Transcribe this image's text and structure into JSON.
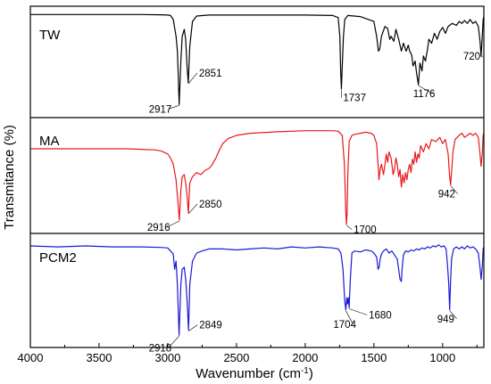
{
  "chart_data": {
    "type": "line",
    "title": "",
    "xlabel": "Wavenumber (cm",
    "xlabel_sup": "-1",
    "xlabel_close": ")",
    "ylabel": "Transmitance (%)",
    "xlim": [
      4000,
      700
    ],
    "x_reversed": true,
    "x_ticks": [
      4000,
      3500,
      3000,
      2500,
      2000,
      1500,
      1000
    ],
    "x_tick_labels": [
      "4000",
      "3500",
      "3000",
      "2500",
      "2000",
      "1500",
      "1000"
    ],
    "grid": false,
    "legend": "none",
    "ylim": [
      0,
      1
    ],
    "series": [
      {
        "name": "TW",
        "color": "#000000",
        "x": [
          4000,
          3800,
          3600,
          3400,
          3200,
          3050,
          3000,
          2980,
          2960,
          2940,
          2930,
          2925,
          2917,
          2905,
          2895,
          2880,
          2870,
          2860,
          2851,
          2840,
          2820,
          2790,
          2700,
          2400,
          2200,
          2000,
          1800,
          1760,
          1748,
          1742,
          1737,
          1730,
          1722,
          1712,
          1690,
          1600,
          1500,
          1480,
          1467,
          1458,
          1445,
          1420,
          1400,
          1385,
          1375,
          1355,
          1340,
          1320,
          1300,
          1285,
          1265,
          1250,
          1240,
          1225,
          1215,
          1200,
          1190,
          1176,
          1165,
          1150,
          1140,
          1125,
          1110,
          1100,
          1080,
          1060,
          1040,
          1020,
          1000,
          980,
          960,
          950,
          930,
          900,
          880,
          860,
          840,
          820,
          800,
          780,
          760,
          740,
          728,
          720,
          712,
          705,
          700
        ],
        "y": [
          0.97,
          0.97,
          0.97,
          0.97,
          0.97,
          0.968,
          0.965,
          0.96,
          0.92,
          0.75,
          0.6,
          0.4,
          0.06,
          0.5,
          0.75,
          0.82,
          0.72,
          0.45,
          0.28,
          0.65,
          0.9,
          0.955,
          0.965,
          0.965,
          0.965,
          0.965,
          0.96,
          0.94,
          0.75,
          0.4,
          0.22,
          0.45,
          0.75,
          0.92,
          0.96,
          0.95,
          0.9,
          0.75,
          0.6,
          0.62,
          0.75,
          0.85,
          0.83,
          0.72,
          0.75,
          0.7,
          0.82,
          0.72,
          0.6,
          0.68,
          0.6,
          0.66,
          0.6,
          0.56,
          0.45,
          0.5,
          0.38,
          0.26,
          0.48,
          0.4,
          0.55,
          0.5,
          0.62,
          0.72,
          0.68,
          0.78,
          0.72,
          0.8,
          0.84,
          0.78,
          0.85,
          0.86,
          0.88,
          0.86,
          0.9,
          0.88,
          0.91,
          0.88,
          0.92,
          0.88,
          0.9,
          0.85,
          0.7,
          0.55,
          0.75,
          0.92,
          0.95
        ]
      },
      {
        "name": "MA",
        "color": "#e8191b",
        "x": [
          4000,
          3700,
          3500,
          3300,
          3200,
          3100,
          3050,
          3000,
          2980,
          2960,
          2940,
          2930,
          2916,
          2905,
          2895,
          2880,
          2870,
          2860,
          2850,
          2840,
          2820,
          2790,
          2760,
          2730,
          2700,
          2680,
          2650,
          2620,
          2600,
          2560,
          2500,
          2400,
          2200,
          2000,
          1800,
          1760,
          1730,
          1715,
          1705,
          1700,
          1695,
          1690,
          1680,
          1660,
          1640,
          1600,
          1560,
          1520,
          1500,
          1480,
          1470,
          1463,
          1455,
          1445,
          1430,
          1420,
          1410,
          1400,
          1390,
          1375,
          1360,
          1350,
          1340,
          1330,
          1320,
          1310,
          1300,
          1290,
          1280,
          1270,
          1260,
          1250,
          1240,
          1230,
          1220,
          1210,
          1200,
          1190,
          1180,
          1170,
          1160,
          1140,
          1120,
          1100,
          1080,
          1050,
          1020,
          1000,
          980,
          960,
          950,
          942,
          935,
          925,
          910,
          880,
          860,
          840,
          820,
          800,
          780,
          760,
          740,
          728,
          720,
          712,
          705,
          700
        ],
        "y": [
          0.75,
          0.75,
          0.75,
          0.75,
          0.745,
          0.74,
          0.73,
          0.7,
          0.66,
          0.6,
          0.45,
          0.3,
          0.06,
          0.35,
          0.48,
          0.5,
          0.42,
          0.3,
          0.13,
          0.42,
          0.48,
          0.52,
          0.5,
          0.54,
          0.56,
          0.59,
          0.66,
          0.75,
          0.8,
          0.85,
          0.88,
          0.9,
          0.915,
          0.925,
          0.925,
          0.92,
          0.88,
          0.6,
          0.15,
          0.02,
          0.12,
          0.5,
          0.82,
          0.88,
          0.89,
          0.9,
          0.91,
          0.9,
          0.88,
          0.8,
          0.6,
          0.45,
          0.55,
          0.6,
          0.5,
          0.6,
          0.7,
          0.62,
          0.72,
          0.66,
          0.5,
          0.55,
          0.66,
          0.6,
          0.48,
          0.55,
          0.38,
          0.5,
          0.42,
          0.52,
          0.45,
          0.55,
          0.6,
          0.52,
          0.65,
          0.6,
          0.72,
          0.62,
          0.7,
          0.66,
          0.78,
          0.72,
          0.8,
          0.75,
          0.84,
          0.82,
          0.86,
          0.8,
          0.84,
          0.7,
          0.5,
          0.4,
          0.52,
          0.72,
          0.84,
          0.88,
          0.9,
          0.86,
          0.88,
          0.9,
          0.88,
          0.9,
          0.86,
          0.7,
          0.58,
          0.7,
          0.88,
          0.9
        ]
      },
      {
        "name": "PCM2",
        "color": "#1a1ad4",
        "x": [
          4000,
          3800,
          3600,
          3400,
          3200,
          3050,
          3000,
          2980,
          2960,
          2950,
          2940,
          2930,
          2918,
          2905,
          2895,
          2880,
          2870,
          2860,
          2849,
          2840,
          2820,
          2790,
          2750,
          2700,
          2600,
          2500,
          2400,
          2300,
          2200,
          2100,
          2000,
          1900,
          1800,
          1760,
          1740,
          1725,
          1712,
          1704,
          1698,
          1692,
          1686,
          1680,
          1672,
          1660,
          1640,
          1600,
          1560,
          1520,
          1500,
          1480,
          1470,
          1462,
          1455,
          1445,
          1430,
          1410,
          1390,
          1370,
          1350,
          1330,
          1310,
          1300,
          1295,
          1285,
          1270,
          1250,
          1230,
          1210,
          1190,
          1170,
          1150,
          1130,
          1110,
          1090,
          1070,
          1050,
          1030,
          1010,
          990,
          975,
          965,
          955,
          949,
          943,
          935,
          920,
          900,
          880,
          860,
          840,
          820,
          800,
          780,
          760,
          740,
          728,
          720,
          712,
          705,
          700
        ],
        "y": [
          0.93,
          0.92,
          0.93,
          0.92,
          0.92,
          0.915,
          0.91,
          0.88,
          0.85,
          0.7,
          0.78,
          0.55,
          0.05,
          0.55,
          0.7,
          0.72,
          0.6,
          0.4,
          0.1,
          0.55,
          0.78,
          0.86,
          0.88,
          0.9,
          0.9,
          0.89,
          0.9,
          0.91,
          0.9,
          0.92,
          0.91,
          0.92,
          0.91,
          0.9,
          0.86,
          0.7,
          0.38,
          0.3,
          0.42,
          0.36,
          0.42,
          0.32,
          0.6,
          0.86,
          0.88,
          0.87,
          0.89,
          0.88,
          0.86,
          0.82,
          0.7,
          0.72,
          0.8,
          0.85,
          0.88,
          0.9,
          0.86,
          0.88,
          0.84,
          0.8,
          0.6,
          0.58,
          0.7,
          0.84,
          0.88,
          0.87,
          0.89,
          0.88,
          0.9,
          0.89,
          0.91,
          0.9,
          0.92,
          0.91,
          0.93,
          0.92,
          0.94,
          0.92,
          0.93,
          0.9,
          0.75,
          0.55,
          0.3,
          0.55,
          0.8,
          0.9,
          0.92,
          0.9,
          0.92,
          0.9,
          0.93,
          0.91,
          0.92,
          0.9,
          0.86,
          0.72,
          0.6,
          0.72,
          0.9,
          0.92
        ]
      }
    ],
    "annotations": [
      {
        "panel": 0,
        "text": "2917",
        "x": 2917
      },
      {
        "panel": 0,
        "text": "2851",
        "x": 2851
      },
      {
        "panel": 0,
        "text": "1737",
        "x": 1737
      },
      {
        "panel": 0,
        "text": "1176",
        "x": 1176
      },
      {
        "panel": 0,
        "text": "720",
        "x": 720
      },
      {
        "panel": 1,
        "text": "2916",
        "x": 2916
      },
      {
        "panel": 1,
        "text": "2850",
        "x": 2850
      },
      {
        "panel": 1,
        "text": "1700",
        "x": 1700
      },
      {
        "panel": 1,
        "text": "942",
        "x": 942
      },
      {
        "panel": 2,
        "text": "2918",
        "x": 2918
      },
      {
        "panel": 2,
        "text": "2849",
        "x": 2849
      },
      {
        "panel": 2,
        "text": "1704",
        "x": 1704
      },
      {
        "panel": 2,
        "text": "1680",
        "x": 1680
      },
      {
        "panel": 2,
        "text": "949",
        "x": 949
      }
    ]
  }
}
